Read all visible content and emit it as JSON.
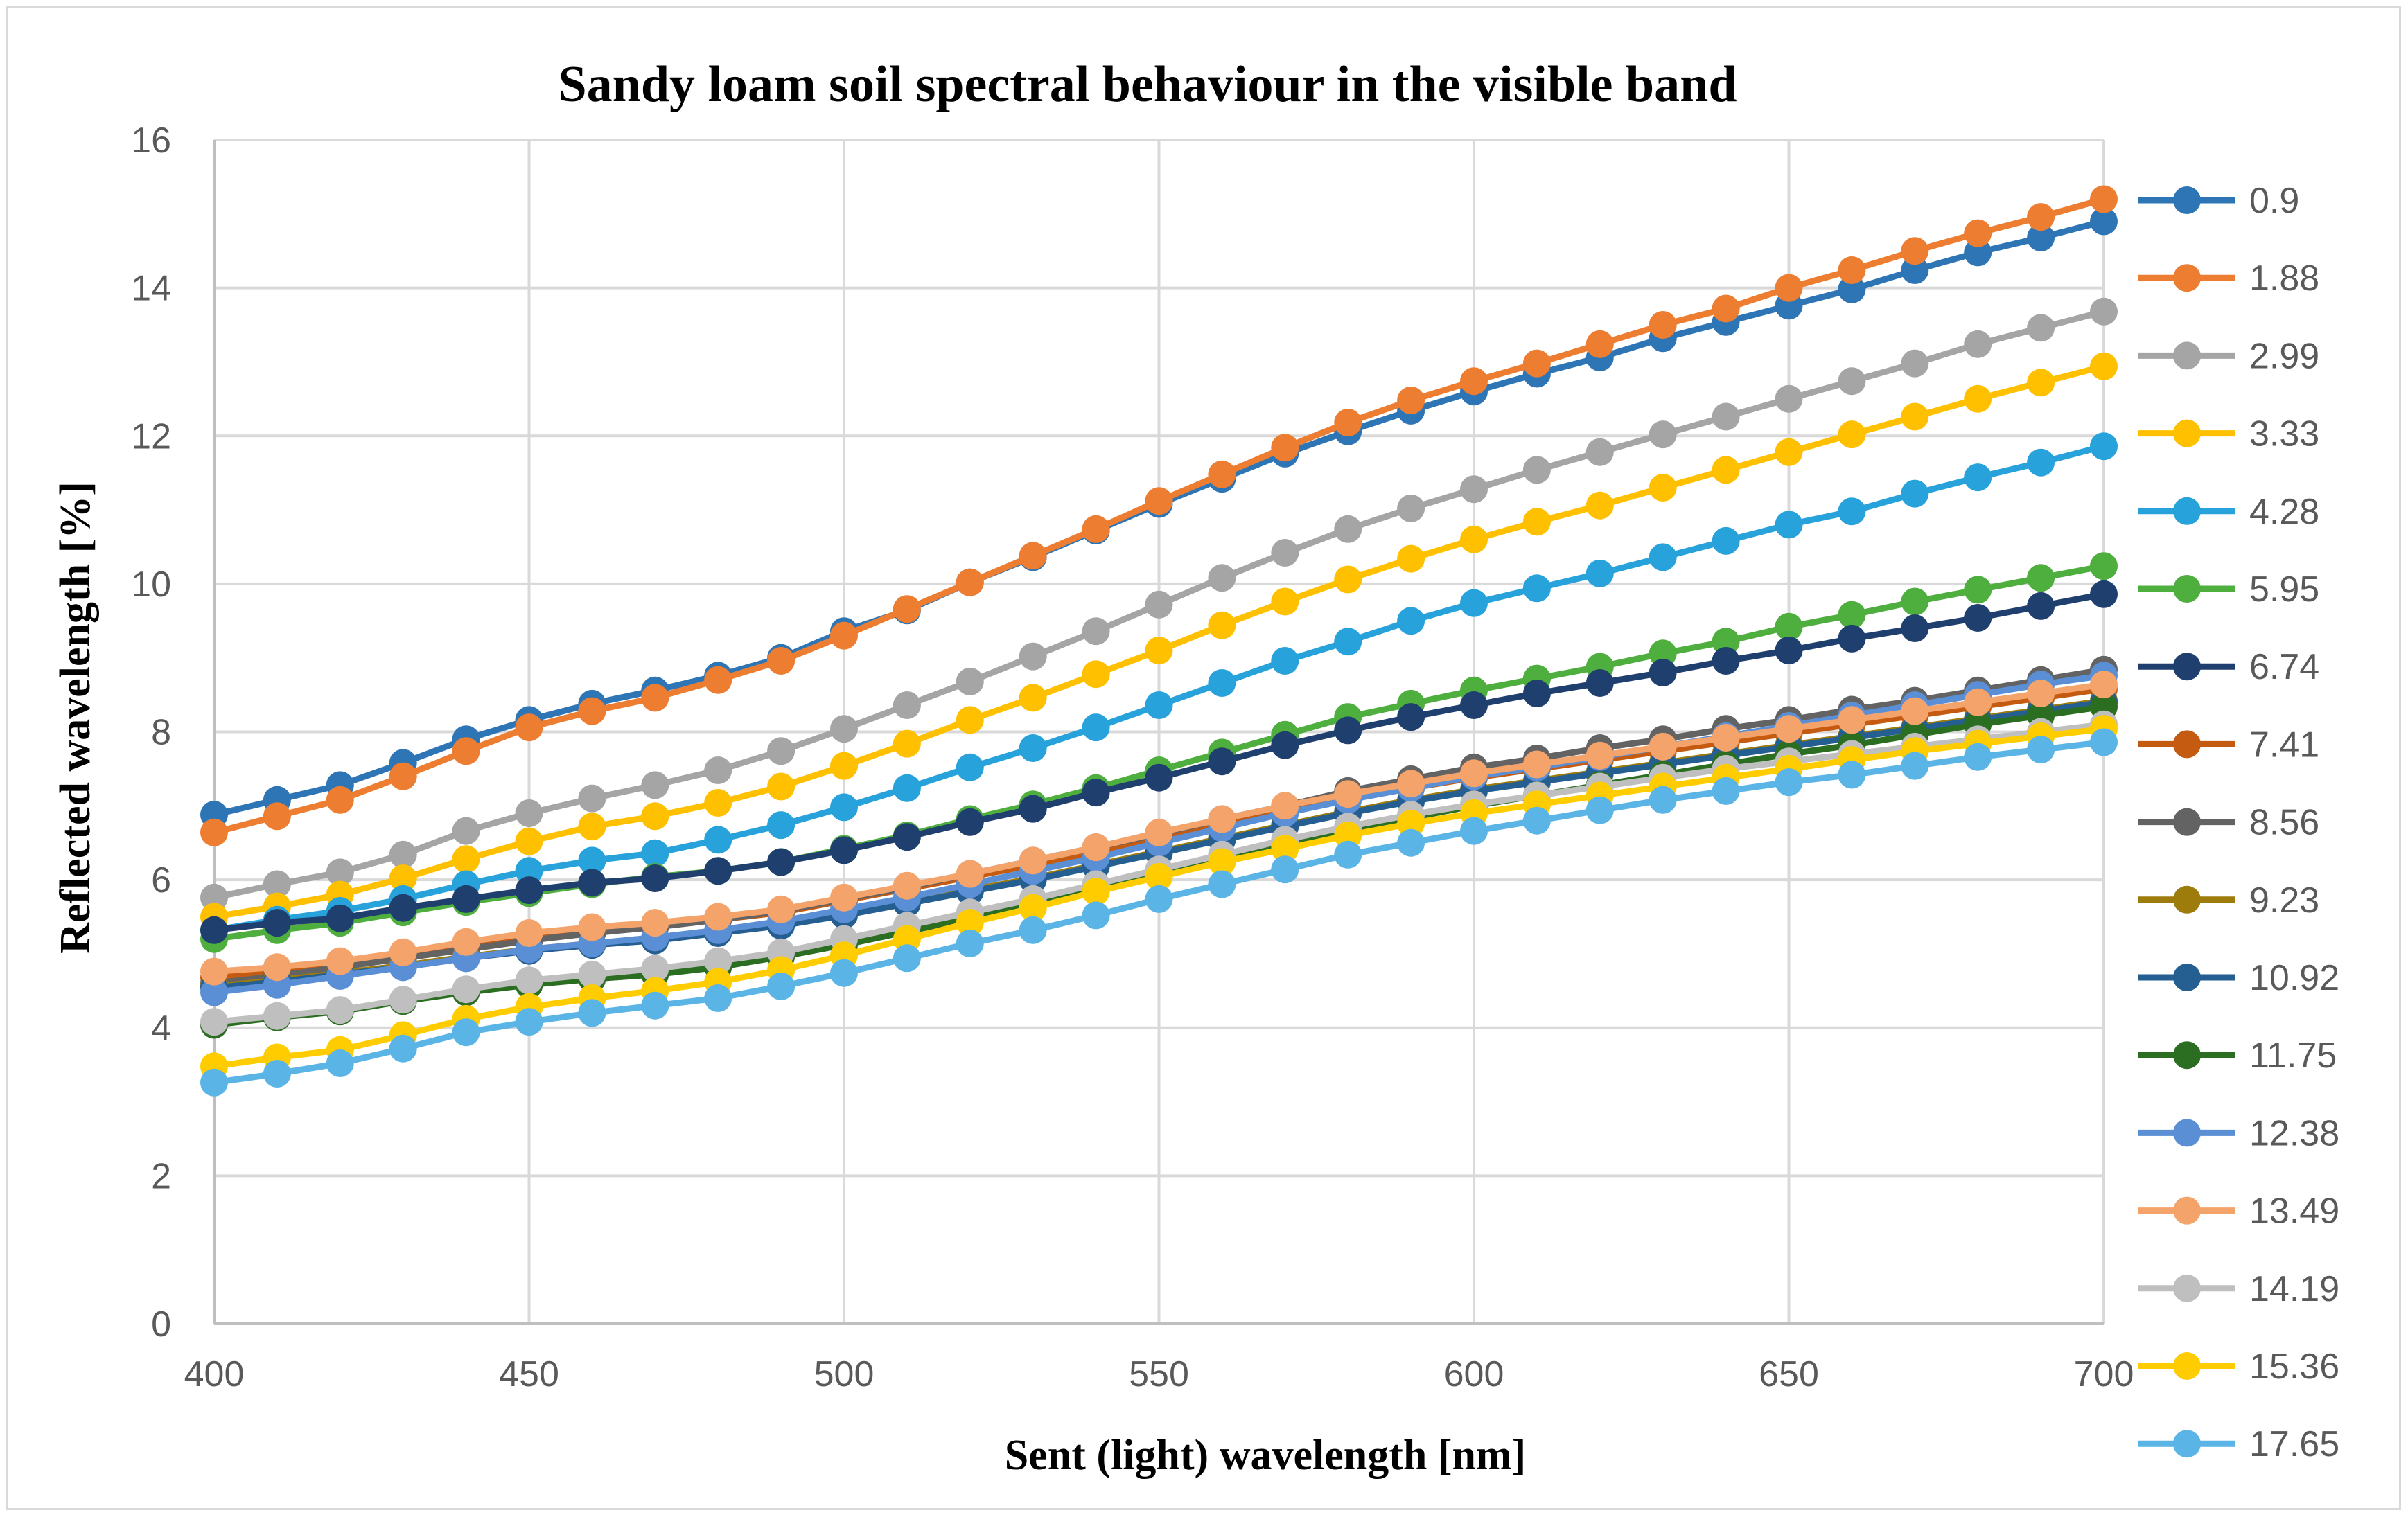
{
  "chart_data": {
    "type": "line",
    "title": "Sandy loam soil spectral behaviour in the visible band",
    "xlabel": "Sent (light) wavelength [nm]",
    "ylabel": "Reflected wavelength [%]",
    "xlim": [
      400,
      700
    ],
    "ylim": [
      0,
      16
    ],
    "x_ticks": [
      400,
      450,
      500,
      550,
      600,
      650,
      700
    ],
    "y_ticks": [
      0,
      2,
      4,
      6,
      8,
      10,
      12,
      14,
      16
    ],
    "grid": true,
    "legend_position": "right",
    "marker": "circle",
    "x": [
      400,
      410,
      420,
      430,
      440,
      450,
      460,
      470,
      480,
      490,
      500,
      510,
      520,
      530,
      540,
      550,
      560,
      570,
      580,
      590,
      600,
      610,
      620,
      630,
      640,
      650,
      660,
      670,
      680,
      690,
      700
    ],
    "series": [
      {
        "name": "0.9",
        "color": "#2E75B6",
        "values": [
          6.88,
          7.08,
          7.28,
          7.58,
          7.9,
          8.16,
          8.38,
          8.56,
          8.76,
          9.0,
          9.36,
          9.64,
          10.02,
          10.36,
          10.72,
          11.08,
          11.42,
          11.76,
          12.06,
          12.34,
          12.6,
          12.84,
          13.06,
          13.32,
          13.54,
          13.76,
          13.98,
          14.24,
          14.48,
          14.68,
          14.9
        ]
      },
      {
        "name": "1.88",
        "color": "#ED7D31",
        "values": [
          6.64,
          6.86,
          7.08,
          7.4,
          7.74,
          8.06,
          8.28,
          8.46,
          8.7,
          8.96,
          9.3,
          9.66,
          10.02,
          10.38,
          10.74,
          11.12,
          11.48,
          11.84,
          12.18,
          12.48,
          12.74,
          12.98,
          13.24,
          13.5,
          13.72,
          14.0,
          14.24,
          14.5,
          14.74,
          14.96,
          15.2
        ]
      },
      {
        "name": "2.99",
        "color": "#A5A5A5",
        "values": [
          5.76,
          5.94,
          6.1,
          6.34,
          6.66,
          6.9,
          7.1,
          7.28,
          7.48,
          7.74,
          8.04,
          8.36,
          8.68,
          9.02,
          9.36,
          9.72,
          10.08,
          10.42,
          10.74,
          11.02,
          11.28,
          11.54,
          11.78,
          12.02,
          12.26,
          12.5,
          12.74,
          12.98,
          13.24,
          13.46,
          13.68
        ]
      },
      {
        "name": "3.33",
        "color": "#FFC000",
        "values": [
          5.5,
          5.64,
          5.8,
          6.02,
          6.28,
          6.52,
          6.72,
          6.86,
          7.04,
          7.26,
          7.54,
          7.84,
          8.16,
          8.46,
          8.78,
          9.1,
          9.44,
          9.76,
          10.06,
          10.34,
          10.6,
          10.84,
          11.06,
          11.3,
          11.54,
          11.78,
          12.02,
          12.26,
          12.5,
          12.72,
          12.94
        ]
      },
      {
        "name": "4.28",
        "color": "#27A2DB",
        "values": [
          5.32,
          5.46,
          5.58,
          5.74,
          5.94,
          6.12,
          6.26,
          6.36,
          6.54,
          6.74,
          6.98,
          7.24,
          7.52,
          7.78,
          8.06,
          8.36,
          8.66,
          8.96,
          9.22,
          9.5,
          9.74,
          9.94,
          10.14,
          10.36,
          10.58,
          10.8,
          10.98,
          11.22,
          11.44,
          11.64,
          11.86
        ]
      },
      {
        "name": "5.95",
        "color": "#4EAE3E",
        "values": [
          5.2,
          5.32,
          5.42,
          5.56,
          5.7,
          5.82,
          5.94,
          6.04,
          6.12,
          6.24,
          6.42,
          6.6,
          6.82,
          7.02,
          7.24,
          7.48,
          7.72,
          7.96,
          8.2,
          8.38,
          8.56,
          8.72,
          8.88,
          9.06,
          9.22,
          9.42,
          9.58,
          9.76,
          9.92,
          10.08,
          10.24
        ]
      },
      {
        "name": "6.74",
        "color": "#1F3F6E",
        "values": [
          5.32,
          5.42,
          5.48,
          5.62,
          5.74,
          5.86,
          5.96,
          6.02,
          6.12,
          6.24,
          6.4,
          6.58,
          6.78,
          6.96,
          7.18,
          7.38,
          7.6,
          7.82,
          8.02,
          8.2,
          8.36,
          8.52,
          8.66,
          8.8,
          8.96,
          9.1,
          9.26,
          9.4,
          9.54,
          9.7,
          9.86
        ]
      },
      {
        "name": "7.41",
        "color": "#C55A11",
        "values": [
          4.68,
          4.78,
          4.88,
          4.98,
          5.1,
          5.22,
          5.3,
          5.38,
          5.46,
          5.56,
          5.72,
          5.88,
          6.04,
          6.2,
          6.38,
          6.56,
          6.74,
          6.92,
          7.1,
          7.24,
          7.38,
          7.5,
          7.62,
          7.74,
          7.86,
          7.98,
          8.1,
          8.22,
          8.34,
          8.46,
          8.58
        ]
      },
      {
        "name": "8.56",
        "color": "#636363",
        "values": [
          4.6,
          4.7,
          4.82,
          4.94,
          5.06,
          5.18,
          5.28,
          5.36,
          5.46,
          5.58,
          5.74,
          5.9,
          6.08,
          6.26,
          6.44,
          6.62,
          6.82,
          7.0,
          7.2,
          7.36,
          7.52,
          7.64,
          7.78,
          7.9,
          8.04,
          8.16,
          8.3,
          8.42,
          8.56,
          8.7,
          8.84
        ]
      },
      {
        "name": "9.23",
        "color": "#9E7C0C",
        "values": [
          4.56,
          4.64,
          4.74,
          4.84,
          4.96,
          5.06,
          5.14,
          5.2,
          5.3,
          5.4,
          5.54,
          5.7,
          5.86,
          6.02,
          6.2,
          6.38,
          6.56,
          6.74,
          6.92,
          7.08,
          7.22,
          7.34,
          7.46,
          7.58,
          7.7,
          7.82,
          7.94,
          8.06,
          8.18,
          8.3,
          8.42
        ]
      },
      {
        "name": "10.92",
        "color": "#255E91",
        "values": [
          4.54,
          4.62,
          4.72,
          4.82,
          4.94,
          5.04,
          5.12,
          5.18,
          5.28,
          5.38,
          5.52,
          5.68,
          5.84,
          6.0,
          6.18,
          6.36,
          6.54,
          6.72,
          6.9,
          7.06,
          7.2,
          7.32,
          7.44,
          7.56,
          7.68,
          7.8,
          7.92,
          8.04,
          8.16,
          8.28,
          8.4
        ]
      },
      {
        "name": "11.75",
        "color": "#2B6E22",
        "values": [
          4.04,
          4.14,
          4.22,
          4.36,
          4.48,
          4.58,
          4.66,
          4.72,
          4.82,
          4.96,
          5.12,
          5.3,
          5.48,
          5.66,
          5.86,
          6.06,
          6.26,
          6.46,
          6.66,
          6.84,
          7.0,
          7.14,
          7.28,
          7.42,
          7.56,
          7.7,
          7.82,
          7.96,
          8.1,
          8.22,
          8.34
        ]
      },
      {
        "name": "12.38",
        "color": "#5A8FD6",
        "values": [
          4.48,
          4.58,
          4.7,
          4.82,
          4.94,
          5.06,
          5.14,
          5.22,
          5.32,
          5.44,
          5.6,
          5.76,
          5.94,
          6.12,
          6.3,
          6.5,
          6.7,
          6.9,
          7.08,
          7.24,
          7.4,
          7.52,
          7.66,
          7.8,
          7.94,
          8.08,
          8.22,
          8.36,
          8.5,
          8.64,
          8.76
        ]
      },
      {
        "name": "13.49",
        "color": "#F4A36B",
        "values": [
          4.76,
          4.82,
          4.9,
          5.02,
          5.16,
          5.28,
          5.36,
          5.42,
          5.5,
          5.6,
          5.76,
          5.92,
          6.08,
          6.26,
          6.44,
          6.64,
          6.82,
          7.0,
          7.16,
          7.3,
          7.44,
          7.56,
          7.68,
          7.8,
          7.92,
          8.04,
          8.16,
          8.28,
          8.4,
          8.52,
          8.64
        ]
      },
      {
        "name": "14.19",
        "color": "#BFBFBF",
        "values": [
          4.08,
          4.16,
          4.24,
          4.38,
          4.52,
          4.64,
          4.72,
          4.8,
          4.9,
          5.02,
          5.2,
          5.38,
          5.56,
          5.74,
          5.94,
          6.14,
          6.34,
          6.54,
          6.72,
          6.88,
          7.02,
          7.14,
          7.26,
          7.38,
          7.5,
          7.6,
          7.7,
          7.8,
          7.9,
          8.0,
          8.1
        ]
      },
      {
        "name": "15.36",
        "color": "#FFCC00",
        "values": [
          3.48,
          3.6,
          3.7,
          3.9,
          4.12,
          4.28,
          4.4,
          4.5,
          4.62,
          4.78,
          4.98,
          5.2,
          5.42,
          5.62,
          5.84,
          6.04,
          6.24,
          6.42,
          6.6,
          6.76,
          6.9,
          7.02,
          7.14,
          7.26,
          7.38,
          7.5,
          7.62,
          7.74,
          7.84,
          7.94,
          8.04
        ]
      },
      {
        "name": "17.65",
        "color": "#5AB4E5",
        "values": [
          3.26,
          3.38,
          3.52,
          3.72,
          3.94,
          4.08,
          4.2,
          4.3,
          4.4,
          4.56,
          4.74,
          4.94,
          5.14,
          5.32,
          5.52,
          5.74,
          5.94,
          6.14,
          6.34,
          6.5,
          6.66,
          6.8,
          6.94,
          7.08,
          7.2,
          7.32,
          7.42,
          7.54,
          7.66,
          7.76,
          7.86
        ]
      }
    ]
  }
}
